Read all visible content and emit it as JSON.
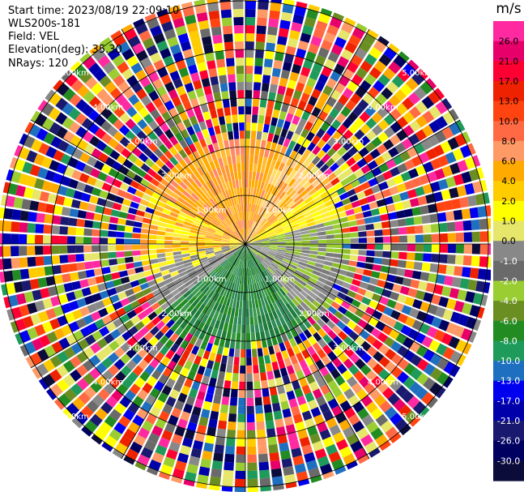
{
  "header": {
    "start_time": "Start time: 2023/08/19 22:09:10",
    "instrument": "WLS200s-181",
    "field": "Field: VEL",
    "elevation": "Elevation(deg): 35.30",
    "nrays": "NRays: 120"
  },
  "range_rings": {
    "labels": [
      "1.00km",
      "2.00km",
      "3.00km",
      "4.00km",
      "5.00km"
    ]
  },
  "colorbar": {
    "unit": "m/s",
    "ticks": [
      "26.0",
      "21.0",
      "17.0",
      "13.0",
      "10.0",
      "8.0",
      "6.0",
      "4.0",
      "2.0",
      "1.0",
      "0.0",
      "-1.0",
      "-2.0",
      "-4.0",
      "-6.0",
      "-8.0",
      "-10.0",
      "-13.0",
      "-17.0",
      "-21.0",
      "-26.0",
      "-30.0"
    ],
    "colors": [
      "#ff2aa0",
      "#e8006a",
      "#ff0033",
      "#ee2200",
      "#ff4411",
      "#ff6a44",
      "#ff9966",
      "#ffaa00",
      "#ffcc00",
      "#ffff00",
      "#e6e66a",
      "#888888",
      "#6a6a6a",
      "#9acd32",
      "#6b8e23",
      "#228b22",
      "#1e9a5a",
      "#1e6fc0",
      "#0000ee",
      "#0000aa",
      "#191970",
      "#000060",
      "#0c0c3a"
    ]
  }
}
